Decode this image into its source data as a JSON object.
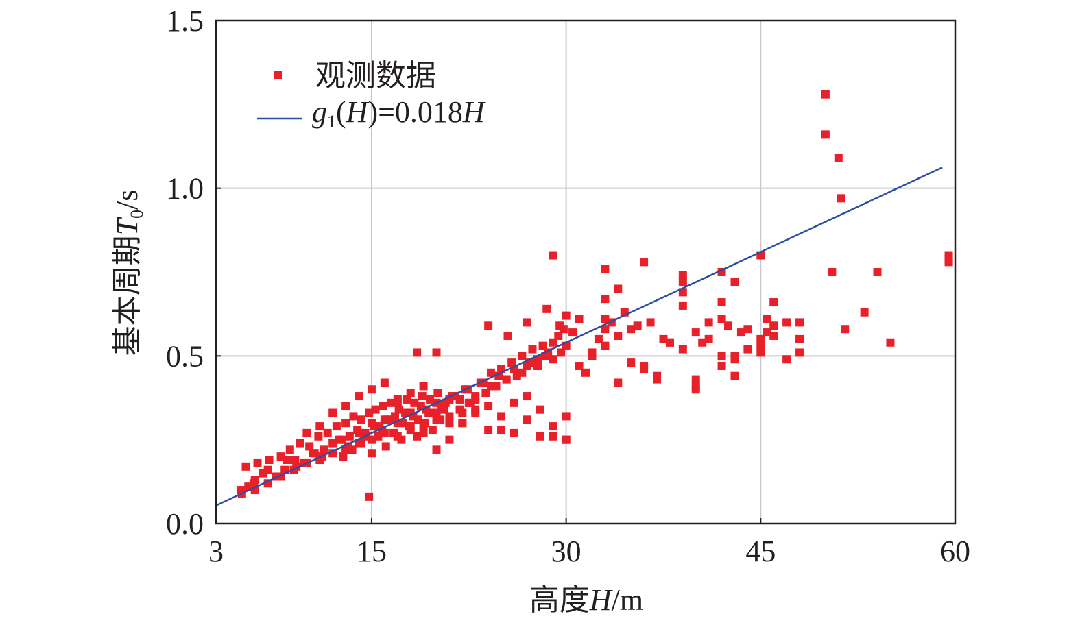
{
  "chart_data": {
    "type": "scatter",
    "xlabel": {
      "prefix": "高度",
      "var": "H",
      "unit": "/m"
    },
    "ylabel": {
      "prefix": "基本周期",
      "var": "T",
      "sub": "0",
      "unit": "/s"
    },
    "xlim": [
      3,
      60
    ],
    "ylim": [
      0,
      1.5
    ],
    "xticks": [
      3,
      15,
      30,
      45,
      60
    ],
    "yticks": [
      0.0,
      0.5,
      1.0,
      1.5
    ],
    "xtick_labels": [
      "3",
      "15",
      "30",
      "45",
      "60"
    ],
    "ytick_labels": [
      "0.0",
      "0.5",
      "1.0",
      "1.5"
    ],
    "grid": true,
    "legend_position": "top-left",
    "series": [
      {
        "name": "观测数据",
        "kind": "scatter",
        "color": "#e8202a",
        "x": [
          4.9,
          5.3,
          5.5,
          5.9,
          6.2,
          6.6,
          7.1,
          7.6,
          8.0,
          8.3,
          8.7,
          9.1,
          9.5,
          9.8,
          10.2,
          10.6,
          10.9,
          11.3,
          11.6,
          12.0,
          12.3,
          12.7,
          13.0,
          13.3,
          13.6,
          13.9,
          14.2,
          14.5,
          14.8,
          15.0,
          15.3,
          15.6,
          15.9,
          16.2,
          16.5,
          16.8,
          17.1,
          17.4,
          17.7,
          18.0,
          18.3,
          18.6,
          18.9,
          19.2,
          19.5,
          19.8,
          20.1,
          20.4,
          20.7,
          21.0,
          21.4,
          21.8,
          22.2,
          22.6,
          23.0,
          23.4,
          23.8,
          24.2,
          24.6,
          25.0,
          25.4,
          25.8,
          26.2,
          26.6,
          27.0,
          27.4,
          27.8,
          28.2,
          28.6,
          29.0,
          29.4,
          29.8,
          6.0,
          7.0,
          8.5,
          9.2,
          10.5,
          11.2,
          12.5,
          13.2,
          14.0,
          14.6,
          15.2,
          15.8,
          16.4,
          17.0,
          17.6,
          18.2,
          18.8,
          19.4,
          20.0,
          20.6,
          21.2,
          21.8,
          22.4,
          23.0,
          23.6,
          24.2,
          24.8,
          25.4,
          26.0,
          26.6,
          27.2,
          27.8,
          28.4,
          29.0,
          29.6,
          30.0,
          12.8,
          13.5,
          14.2,
          15.0,
          15.5,
          16.1,
          16.7,
          17.3,
          17.9,
          18.5,
          19.1,
          19.7,
          20.3,
          10.0,
          11.0,
          12.0,
          13.0,
          14.0,
          15.0,
          16.0,
          17.0,
          18.0,
          19.0,
          20.0,
          21.0,
          22.0,
          23.0,
          24.0,
          25.0,
          26.0,
          27.0,
          28.0,
          29.0,
          30.0,
          5.0,
          6.0,
          7.0,
          8.0,
          9.0,
          10.0,
          11.0,
          12.0,
          13.0,
          14.0,
          15.0,
          16.0,
          17.0,
          18.0,
          19.0,
          20.0,
          21.0,
          22.0,
          14.8,
          18.5,
          20.0,
          22.5,
          24.0,
          25.5,
          27.0,
          29.0,
          30.0,
          30.5,
          31.0,
          31.5,
          32.0,
          32.5,
          33.0,
          33.5,
          34.0,
          34.5,
          35.0,
          35.5,
          36.0,
          36.5,
          37.0,
          37.5,
          38.0,
          39.0,
          40.0,
          40.5,
          41.0,
          42.0,
          42.5,
          43.0,
          43.5,
          44.0,
          45.0,
          45.5,
          46.0,
          47.0,
          48.0,
          50.0,
          50.0,
          50.5,
          51.0,
          51.2,
          51.5,
          53.0,
          54.0,
          55.0,
          59.5,
          59.5,
          59.5,
          29.0,
          30.0,
          30.0,
          33.0,
          33.0,
          33.0,
          34.0,
          36.0,
          39.0,
          39.0,
          39.0,
          40.0,
          40.0,
          42.0,
          42.0,
          42.0,
          43.0,
          43.0,
          45.0,
          45.0,
          45.5,
          46.0,
          47.0,
          48.0,
          48.0,
          28.5,
          29.5,
          31.0,
          32.0,
          33.0,
          34.0,
          35.0,
          36.0,
          37.0,
          38.0,
          39.0,
          40.0,
          41.0,
          42.0,
          43.0,
          44.0,
          45.0,
          46.0,
          16.0,
          17.0,
          18.0,
          19.0,
          20.0,
          21.0,
          22.0,
          23.0,
          24.0,
          25.0,
          26.0,
          27.0,
          28.0
        ],
        "y": [
          0.1,
          0.17,
          0.11,
          0.12,
          0.18,
          0.15,
          0.19,
          0.14,
          0.2,
          0.16,
          0.22,
          0.19,
          0.24,
          0.18,
          0.23,
          0.21,
          0.26,
          0.22,
          0.27,
          0.24,
          0.29,
          0.25,
          0.3,
          0.26,
          0.32,
          0.28,
          0.31,
          0.27,
          0.33,
          0.3,
          0.34,
          0.29,
          0.35,
          0.31,
          0.36,
          0.32,
          0.34,
          0.3,
          0.37,
          0.33,
          0.36,
          0.31,
          0.38,
          0.34,
          0.37,
          0.33,
          0.39,
          0.35,
          0.36,
          0.32,
          0.38,
          0.34,
          0.4,
          0.36,
          0.37,
          0.42,
          0.39,
          0.45,
          0.41,
          0.46,
          0.43,
          0.48,
          0.44,
          0.5,
          0.47,
          0.52,
          0.49,
          0.53,
          0.51,
          0.54,
          0.56,
          0.58,
          0.13,
          0.16,
          0.19,
          0.17,
          0.21,
          0.2,
          0.25,
          0.23,
          0.27,
          0.26,
          0.29,
          0.28,
          0.31,
          0.3,
          0.33,
          0.32,
          0.35,
          0.33,
          0.36,
          0.34,
          0.38,
          0.37,
          0.4,
          0.38,
          0.42,
          0.41,
          0.44,
          0.43,
          0.46,
          0.45,
          0.48,
          0.47,
          0.5,
          0.49,
          0.51,
          0.53,
          0.2,
          0.22,
          0.24,
          0.21,
          0.26,
          0.23,
          0.27,
          0.25,
          0.29,
          0.26,
          0.3,
          0.28,
          0.31,
          0.27,
          0.29,
          0.33,
          0.35,
          0.38,
          0.4,
          0.42,
          0.36,
          0.39,
          0.41,
          0.33,
          0.37,
          0.3,
          0.34,
          0.28,
          0.32,
          0.27,
          0.31,
          0.26,
          0.29,
          0.25,
          0.09,
          0.1,
          0.12,
          0.14,
          0.16,
          0.18,
          0.19,
          0.21,
          0.22,
          0.24,
          0.25,
          0.27,
          0.26,
          0.28,
          0.29,
          0.31,
          0.3,
          0.33,
          0.08,
          0.51,
          0.51,
          0.36,
          0.59,
          0.56,
          0.6,
          0.8,
          0.62,
          0.57,
          0.61,
          0.45,
          0.5,
          0.55,
          0.58,
          0.6,
          0.7,
          0.63,
          0.48,
          0.59,
          0.78,
          0.6,
          0.44,
          0.55,
          0.54,
          0.72,
          0.4,
          0.54,
          0.6,
          0.75,
          0.59,
          0.72,
          0.57,
          0.52,
          0.8,
          0.61,
          0.66,
          0.49,
          0.6,
          1.28,
          1.16,
          0.75,
          1.09,
          0.97,
          0.58,
          0.63,
          0.75,
          0.54,
          0.8,
          0.79,
          0.78,
          0.26,
          0.25,
          0.32,
          0.76,
          0.67,
          0.61,
          0.42,
          0.46,
          0.74,
          0.69,
          0.65,
          0.43,
          0.41,
          0.47,
          0.5,
          0.66,
          0.44,
          0.49,
          0.51,
          0.55,
          0.57,
          0.59,
          0.6,
          0.55,
          0.51,
          0.64,
          0.59,
          0.47,
          0.51,
          0.53,
          0.56,
          0.58,
          0.47,
          0.43,
          0.54,
          0.52,
          0.57,
          0.55,
          0.61,
          0.5,
          0.58,
          0.53,
          0.56,
          0.31,
          0.37,
          0.29,
          0.27,
          0.22,
          0.25,
          0.3,
          0.33,
          0.35,
          0.28,
          0.36,
          0.38,
          0.34
        ]
      },
      {
        "name": "g₁(H)=0.018H",
        "kind": "line",
        "color": "#2b4ea2",
        "x": [
          3,
          59.0
        ],
        "y": [
          0.054,
          1.062
        ]
      }
    ]
  },
  "legend": {
    "items": [
      {
        "label": "观测数据",
        "symbol": "square",
        "color": "#e8202a"
      },
      {
        "label_parts": [
          "g",
          "1",
          "(",
          "H",
          ")=0.018",
          "H"
        ],
        "symbol": "line",
        "color": "#2b4ea2"
      }
    ]
  }
}
